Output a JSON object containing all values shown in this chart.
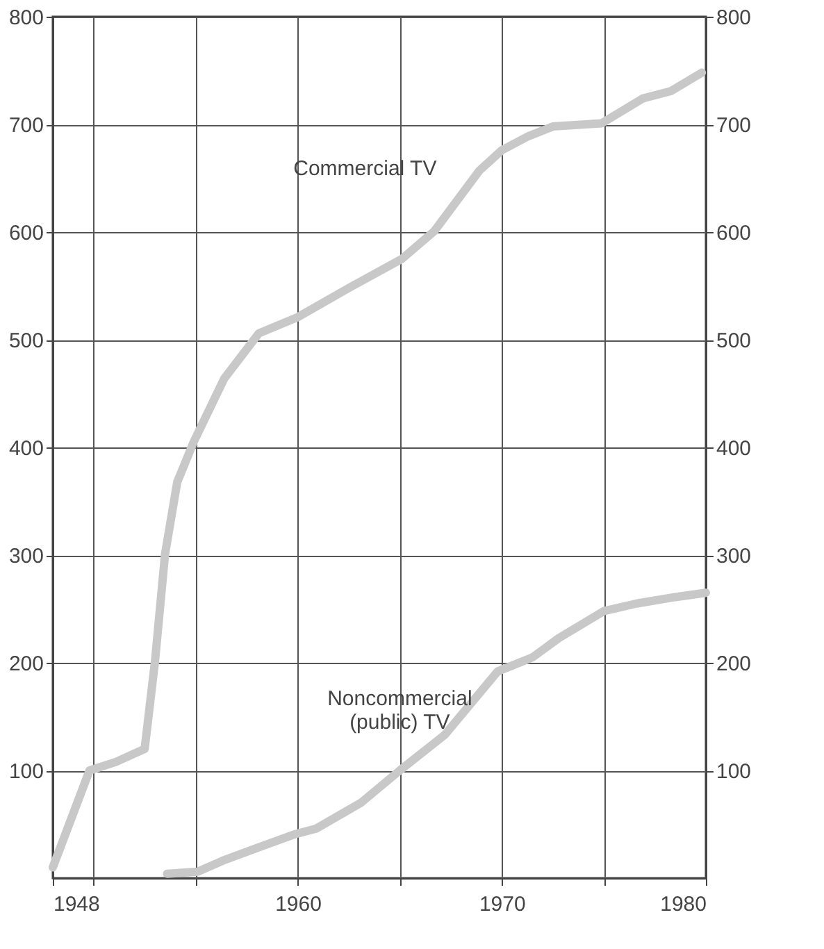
{
  "chart_data": {
    "type": "line",
    "xlim": [
      1948,
      1980
    ],
    "xticks": [
      1948,
      {
        "value": 1950,
        "label": null
      },
      {
        "value": 1955,
        "label": null
      },
      1960,
      {
        "value": 1965,
        "label": null
      },
      1970,
      {
        "value": 1975,
        "label": null
      },
      1980
    ],
    "ylim": [
      0,
      800
    ],
    "yticks": [
      100,
      200,
      300,
      400,
      500,
      600,
      700,
      800
    ],
    "y2lim": [
      0,
      800
    ],
    "y2ticks": [
      100,
      200,
      300,
      400,
      500,
      600,
      700,
      800
    ],
    "grid": true,
    "legend": false,
    "marker": "none",
    "line_style": "solid",
    "series": [
      {
        "name": "Commercial TV",
        "color": "#c8c8c8",
        "x": [
          1948,
          1949.8,
          1951.1,
          1952.5,
          1953,
          1953.5,
          1954.1,
          1954.9,
          1956.4,
          1958.1,
          1960,
          1962.5,
          1965.1,
          1966.7,
          1968.9,
          1970,
          1971.3,
          1972.5,
          1974.9,
          1976.9,
          1978.3,
          1979.8
        ],
        "values": [
          10,
          100,
          108,
          120,
          200,
          301,
          368,
          405,
          464,
          506,
          521,
          548,
          575,
          601,
          657,
          676,
          689,
          698,
          701,
          724,
          731,
          748
        ]
      },
      {
        "name": "Noncommercial\n(public) TV",
        "color": "#c8c8c8",
        "x": [
          1953.6,
          1955.1,
          1956.3,
          1958,
          1959.9,
          1960.9,
          1963.1,
          1965,
          1967.2,
          1969.8,
          1971.5,
          1972.8,
          1975,
          1976.6,
          1978.5,
          1980
        ],
        "values": [
          4,
          6,
          16,
          28,
          41,
          46,
          70,
          100,
          133,
          192,
          205,
          223,
          248,
          255,
          261,
          265
        ]
      }
    ]
  }
}
